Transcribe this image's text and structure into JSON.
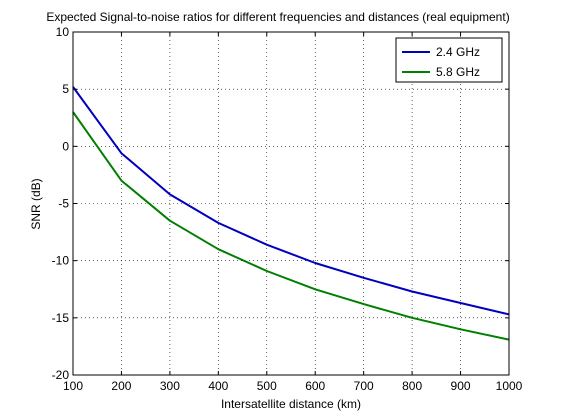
{
  "chart_data": {
    "type": "line",
    "title": "Expected Signal-to-noise ratios for different frequencies and distances (real equipment)",
    "xlabel": "Intersatellite distance (km)",
    "ylabel": "SNR (dB)",
    "xlim": [
      100,
      1000
    ],
    "ylim": [
      -20,
      10
    ],
    "xticks": [
      100,
      200,
      300,
      400,
      500,
      600,
      700,
      800,
      900,
      1000
    ],
    "yticks": [
      -20,
      -15,
      -10,
      -5,
      0,
      5,
      10
    ],
    "grid": true,
    "legend_position": "top-right",
    "x": [
      100,
      200,
      300,
      400,
      500,
      600,
      700,
      800,
      900,
      1000
    ],
    "series": [
      {
        "name": "2.4 GHz",
        "color": "#0000bf",
        "values": [
          5.2,
          -0.6,
          -4.2,
          -6.7,
          -8.6,
          -10.2,
          -11.5,
          -12.7,
          -13.7,
          -14.7
        ]
      },
      {
        "name": "5.8 GHz",
        "color": "#007f00",
        "values": [
          3.0,
          -3.0,
          -6.5,
          -9.0,
          -10.9,
          -12.5,
          -13.8,
          -15.0,
          -16.0,
          -16.9
        ]
      }
    ]
  }
}
